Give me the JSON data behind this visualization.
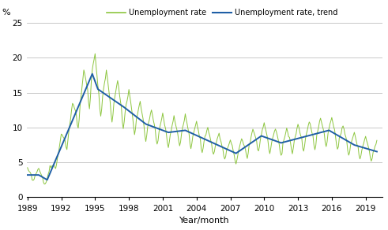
{
  "title": "",
  "ylabel_text": "%",
  "xlabel": "Year/month",
  "ylim": [
    0,
    25
  ],
  "yticks": [
    0,
    5,
    10,
    15,
    20,
    25
  ],
  "xlim_start": 1988.917,
  "xlim_end": 2020.5,
  "xtick_years": [
    1989,
    1992,
    1995,
    1998,
    2001,
    2004,
    2007,
    2010,
    2013,
    2016,
    2019
  ],
  "line_color_raw": "#8dc63f",
  "line_color_trend": "#1f5fa6",
  "legend_labels": [
    "Unemployment rate",
    "Unemployment rate, trend"
  ],
  "background_color": "#ffffff",
  "grid_color": "#bfbfbf"
}
